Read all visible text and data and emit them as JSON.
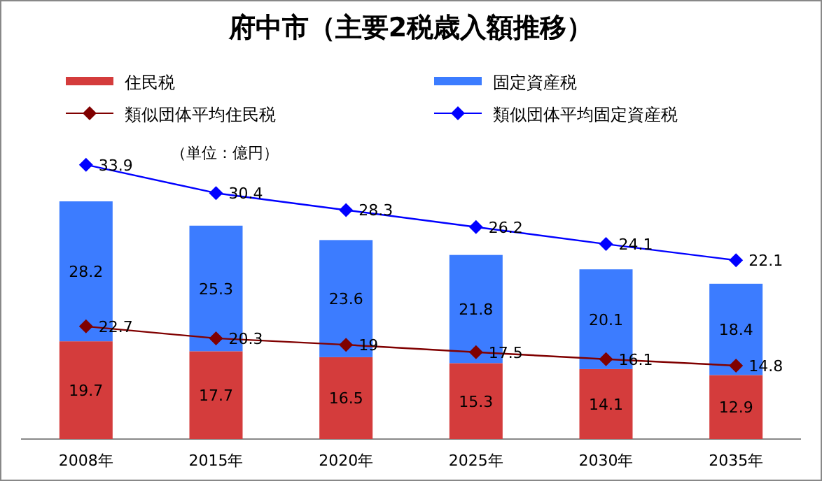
{
  "chart_data": {
    "type": "bar",
    "title": "府中市（主要2税歳入額推移）",
    "annotations": [
      "（単位：億円）"
    ],
    "categories": [
      "2008年",
      "2015年",
      "2020年",
      "2025年",
      "2030年",
      "2035年"
    ],
    "stacked": true,
    "data_labels": true,
    "legend": "top",
    "marker": "diamond",
    "series": [
      {
        "name": "住民税",
        "color": "#d43c3c",
        "values": [
          19.7,
          17.7,
          16.5,
          15.3,
          14.1,
          12.9
        ]
      },
      {
        "name": "固定資産税",
        "color": "#3c7cff",
        "values": [
          28.2,
          25.3,
          23.6,
          21.8,
          20.1,
          18.4
        ]
      },
      {
        "name": "類似団体平均住民税",
        "type": "line",
        "color": "#800000",
        "values": [
          22.7,
          20.3,
          19.0,
          17.5,
          16.1,
          14.8
        ]
      },
      {
        "name": "類似団体平均固定資産税",
        "type": "line",
        "axis": "y2",
        "color": "#0000ff",
        "values": [
          33.9,
          30.4,
          28.3,
          26.2,
          24.1,
          22.1
        ]
      }
    ]
  }
}
